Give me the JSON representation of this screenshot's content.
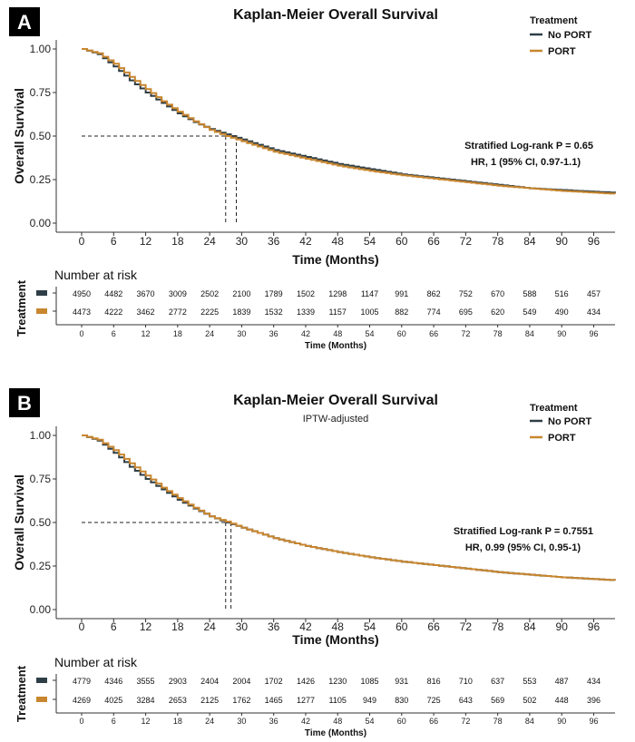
{
  "chart_data": [
    {
      "panel_label": "A",
      "type": "line",
      "step": true,
      "title": "Kaplan-Meier Overall Survival",
      "subtitle": "",
      "xlabel": "Time (Months)",
      "ylabel": "Overall Survival",
      "xlim": [
        0,
        100
      ],
      "ylim": [
        0,
        1
      ],
      "xticks": [
        0,
        6,
        12,
        18,
        24,
        30,
        36,
        42,
        48,
        54,
        60,
        66,
        72,
        78,
        84,
        90,
        96
      ],
      "yticks": [
        "0.00",
        "0.25",
        "0.50",
        "0.75",
        "1.00"
      ],
      "legend_title": "Treatment",
      "legend_position": "top-right",
      "grid": false,
      "series": [
        {
          "name": "No PORT",
          "color": "#2f3e46",
          "x": [
            0,
            3,
            6,
            9,
            12,
            15,
            18,
            21,
            24,
            27,
            30,
            33,
            36,
            42,
            48,
            54,
            60,
            66,
            72,
            78,
            84,
            90,
            96,
            100
          ],
          "y": [
            1.0,
            0.97,
            0.9,
            0.82,
            0.75,
            0.69,
            0.63,
            0.58,
            0.54,
            0.51,
            0.48,
            0.45,
            0.42,
            0.38,
            0.34,
            0.31,
            0.28,
            0.26,
            0.24,
            0.22,
            0.2,
            0.19,
            0.18,
            0.175
          ]
        },
        {
          "name": "PORT",
          "color": "#c8862f",
          "x": [
            0,
            3,
            6,
            9,
            12,
            15,
            18,
            21,
            24,
            27,
            30,
            33,
            36,
            42,
            48,
            54,
            60,
            66,
            72,
            78,
            84,
            90,
            96,
            100
          ],
          "y": [
            1.0,
            0.975,
            0.915,
            0.84,
            0.77,
            0.7,
            0.64,
            0.585,
            0.535,
            0.5,
            0.47,
            0.44,
            0.41,
            0.37,
            0.33,
            0.3,
            0.275,
            0.255,
            0.235,
            0.215,
            0.2,
            0.185,
            0.175,
            0.168
          ]
        }
      ],
      "median_survival": [
        27,
        29
      ],
      "annotation": [
        "Stratified Log-rank P = 0.65",
        "HR, 1 (95% CI, 0.97-1.1)"
      ],
      "risk_table": {
        "title": "Number at risk",
        "ylabel": "Treatment",
        "xlabel": "Time (Months)",
        "rows": [
          {
            "color": "#2f3e46",
            "values": [
              "4950",
              "4482",
              "3670",
              "3009",
              "2502",
              "2100",
              "1789",
              "1502",
              "1298",
              "1147",
              "991",
              "862",
              "752",
              "670",
              "588",
              "516",
              "457"
            ]
          },
          {
            "color": "#c8862f",
            "values": [
              "4473",
              "4222",
              "3462",
              "2772",
              "2225",
              "1839",
              "1532",
              "1339",
              "1157",
              "1005",
              "882",
              "774",
              "695",
              "620",
              "549",
              "490",
              "434"
            ]
          }
        ]
      }
    },
    {
      "panel_label": "B",
      "type": "line",
      "step": true,
      "title": "Kaplan-Meier Overall Survival",
      "subtitle": "IPTW-adjusted",
      "xlabel": "Time (Months)",
      "ylabel": "Overall Survival",
      "xlim": [
        0,
        100
      ],
      "ylim": [
        0,
        1
      ],
      "xticks": [
        0,
        6,
        12,
        18,
        24,
        30,
        36,
        42,
        48,
        54,
        60,
        66,
        72,
        78,
        84,
        90,
        96
      ],
      "yticks": [
        "0.00",
        "0.25",
        "0.50",
        "0.75",
        "1.00"
      ],
      "legend_title": "Treatment",
      "legend_position": "top-right",
      "grid": false,
      "series": [
        {
          "name": "No PORT",
          "color": "#2f3e46",
          "x": [
            0,
            3,
            6,
            9,
            12,
            15,
            18,
            21,
            24,
            27,
            30,
            33,
            36,
            42,
            48,
            54,
            60,
            66,
            72,
            78,
            84,
            90,
            96,
            100
          ],
          "y": [
            1.0,
            0.97,
            0.9,
            0.82,
            0.75,
            0.69,
            0.63,
            0.58,
            0.535,
            0.5,
            0.47,
            0.44,
            0.41,
            0.365,
            0.33,
            0.3,
            0.275,
            0.255,
            0.235,
            0.215,
            0.2,
            0.185,
            0.175,
            0.168
          ]
        },
        {
          "name": "PORT",
          "color": "#c8862f",
          "x": [
            0,
            3,
            6,
            9,
            12,
            15,
            18,
            21,
            24,
            27,
            30,
            33,
            36,
            42,
            48,
            54,
            60,
            66,
            72,
            78,
            84,
            90,
            96,
            100
          ],
          "y": [
            1.0,
            0.975,
            0.915,
            0.84,
            0.77,
            0.7,
            0.64,
            0.585,
            0.535,
            0.505,
            0.47,
            0.44,
            0.41,
            0.365,
            0.33,
            0.3,
            0.275,
            0.255,
            0.235,
            0.215,
            0.2,
            0.185,
            0.175,
            0.168
          ]
        }
      ],
      "median_survival": [
        27,
        28
      ],
      "annotation": [
        "Stratified Log-rank P = 0.7551",
        "HR, 0.99 (95% CI, 0.95-1)"
      ],
      "risk_table": {
        "title": "Number at risk",
        "ylabel": "Treatment",
        "xlabel": "Time (Months)",
        "rows": [
          {
            "color": "#2f3e46",
            "values": [
              "4779",
              "4346",
              "3555",
              "2903",
              "2404",
              "2004",
              "1702",
              "1426",
              "1230",
              "1085",
              "931",
              "816",
              "710",
              "637",
              "553",
              "487",
              "434"
            ]
          },
          {
            "color": "#c8862f",
            "values": [
              "4269",
              "4025",
              "3284",
              "2653",
              "2125",
              "1762",
              "1465",
              "1277",
              "1105",
              "949",
              "830",
              "725",
              "643",
              "569",
              "502",
              "448",
              "396"
            ]
          }
        ]
      }
    }
  ]
}
